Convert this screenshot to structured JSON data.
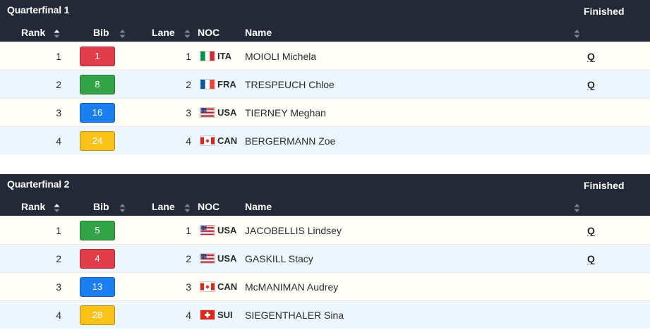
{
  "columns": {
    "rank": "Rank",
    "bib": "Bib",
    "lane": "Lane",
    "noc": "NOC",
    "name": "Name"
  },
  "colors": {
    "red": "#e23d4b",
    "green": "#32a346",
    "blue": "#1b7ff1",
    "yellow": "#f9c31b",
    "header_bg": "#232936"
  },
  "races": [
    {
      "title": "Quarterfinal 1",
      "status": "Finished",
      "rows": [
        {
          "rank": "1",
          "bib": "1",
          "bib_color": "#e23d4b",
          "lane": "1",
          "noc": "ITA",
          "flag": "italy-flag-icon",
          "name": "MOIOLI Michela",
          "q": "Q"
        },
        {
          "rank": "2",
          "bib": "8",
          "bib_color": "#32a346",
          "lane": "2",
          "noc": "FRA",
          "flag": "france-flag-icon",
          "name": "TRESPEUCH Chloe",
          "q": "Q"
        },
        {
          "rank": "3",
          "bib": "16",
          "bib_color": "#1b7ff1",
          "lane": "3",
          "noc": "USA",
          "flag": "usa-flag-icon",
          "name": "TIERNEY Meghan",
          "q": ""
        },
        {
          "rank": "4",
          "bib": "24",
          "bib_color": "#f9c31b",
          "lane": "4",
          "noc": "CAN",
          "flag": "canada-flag-icon",
          "name": "BERGERMANN Zoe",
          "q": ""
        }
      ]
    },
    {
      "title": "Quarterfinal 2",
      "status": "Finished",
      "rows": [
        {
          "rank": "1",
          "bib": "5",
          "bib_color": "#32a346",
          "lane": "1",
          "noc": "USA",
          "flag": "usa-flag-icon",
          "name": "JACOBELLIS Lindsey",
          "q": "Q"
        },
        {
          "rank": "2",
          "bib": "4",
          "bib_color": "#e23d4b",
          "lane": "2",
          "noc": "USA",
          "flag": "usa-flag-icon",
          "name": "GASKILL Stacy",
          "q": "Q"
        },
        {
          "rank": "3",
          "bib": "13",
          "bib_color": "#1b7ff1",
          "lane": "3",
          "noc": "CAN",
          "flag": "canada-flag-icon",
          "name": "McMANIMAN Audrey",
          "q": ""
        },
        {
          "rank": "4",
          "bib": "28",
          "bib_color": "#f9c31b",
          "lane": "4",
          "noc": "SUI",
          "flag": "switzerland-flag-icon",
          "name": "SIEGENTHALER Sina",
          "q": ""
        }
      ]
    }
  ]
}
